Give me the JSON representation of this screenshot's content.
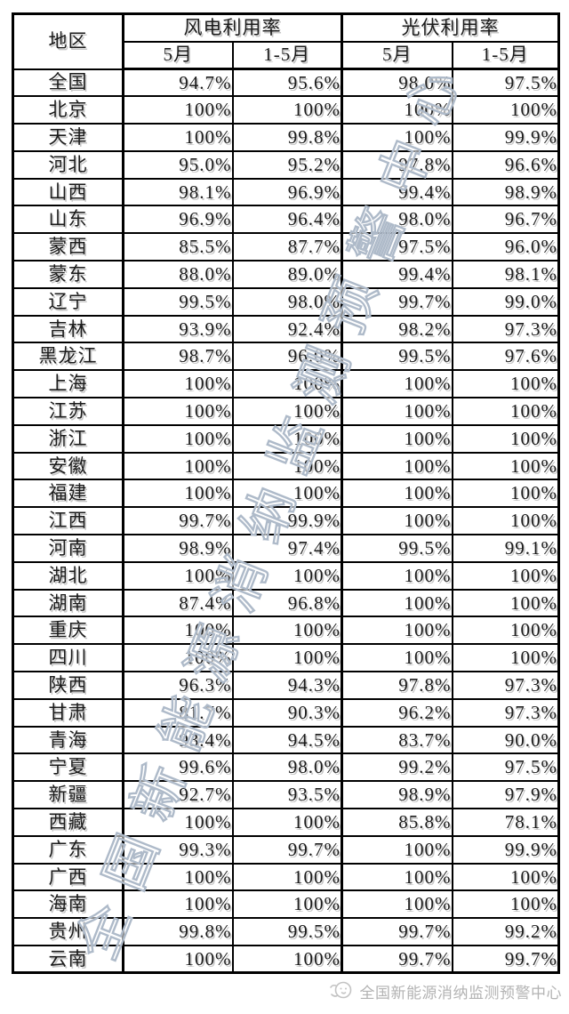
{
  "table": {
    "col_region": "地区",
    "group_wind": "风电利用率",
    "group_solar": "光伏利用率",
    "sub_may": "5月",
    "sub_jan_may": "1-5月",
    "rows": [
      {
        "region": "全国",
        "wind_may": "94.7%",
        "wind_cum": "95.6%",
        "pv_may": "98.0%",
        "pv_cum": "97.5%"
      },
      {
        "region": "北京",
        "wind_may": "100%",
        "wind_cum": "100%",
        "pv_may": "100%",
        "pv_cum": "100%"
      },
      {
        "region": "天津",
        "wind_may": "100%",
        "wind_cum": "99.8%",
        "pv_may": "100%",
        "pv_cum": "99.9%"
      },
      {
        "region": "河北",
        "wind_may": "95.0%",
        "wind_cum": "95.2%",
        "pv_may": "97.8%",
        "pv_cum": "96.6%"
      },
      {
        "region": "山西",
        "wind_may": "98.1%",
        "wind_cum": "96.9%",
        "pv_may": "99.4%",
        "pv_cum": "98.9%"
      },
      {
        "region": "山东",
        "wind_may": "96.9%",
        "wind_cum": "96.4%",
        "pv_may": "98.0%",
        "pv_cum": "96.7%"
      },
      {
        "region": "蒙西",
        "wind_may": "85.5%",
        "wind_cum": "87.7%",
        "pv_may": "97.5%",
        "pv_cum": "96.0%"
      },
      {
        "region": "蒙东",
        "wind_may": "88.0%",
        "wind_cum": "89.0%",
        "pv_may": "99.4%",
        "pv_cum": "98.1%"
      },
      {
        "region": "辽宁",
        "wind_may": "99.5%",
        "wind_cum": "98.0%",
        "pv_may": "99.7%",
        "pv_cum": "99.0%"
      },
      {
        "region": "吉林",
        "wind_may": "93.9%",
        "wind_cum": "92.4%",
        "pv_may": "98.2%",
        "pv_cum": "97.3%"
      },
      {
        "region": "黑龙江",
        "wind_may": "98.7%",
        "wind_cum": "96.0%",
        "pv_may": "99.5%",
        "pv_cum": "97.6%"
      },
      {
        "region": "上海",
        "wind_may": "100%",
        "wind_cum": "100%",
        "pv_may": "100%",
        "pv_cum": "100%"
      },
      {
        "region": "江苏",
        "wind_may": "100%",
        "wind_cum": "100%",
        "pv_may": "100%",
        "pv_cum": "100%"
      },
      {
        "region": "浙江",
        "wind_may": "100%",
        "wind_cum": "100%",
        "pv_may": "100%",
        "pv_cum": "100%"
      },
      {
        "region": "安徽",
        "wind_may": "100%",
        "wind_cum": "100%",
        "pv_may": "100%",
        "pv_cum": "100%"
      },
      {
        "region": "福建",
        "wind_may": "100%",
        "wind_cum": "100%",
        "pv_may": "100%",
        "pv_cum": "100%"
      },
      {
        "region": "江西",
        "wind_may": "99.7%",
        "wind_cum": "99.9%",
        "pv_may": "100%",
        "pv_cum": "100%"
      },
      {
        "region": "河南",
        "wind_may": "98.9%",
        "wind_cum": "97.4%",
        "pv_may": "99.5%",
        "pv_cum": "99.1%"
      },
      {
        "region": "湖北",
        "wind_may": "100%",
        "wind_cum": "100%",
        "pv_may": "100%",
        "pv_cum": "100%"
      },
      {
        "region": "湖南",
        "wind_may": "87.4%",
        "wind_cum": "96.8%",
        "pv_may": "100%",
        "pv_cum": "100%"
      },
      {
        "region": "重庆",
        "wind_may": "100%",
        "wind_cum": "100%",
        "pv_may": "100%",
        "pv_cum": "100%"
      },
      {
        "region": "四川",
        "wind_may": "100%",
        "wind_cum": "100%",
        "pv_may": "100%",
        "pv_cum": "100%"
      },
      {
        "region": "陕西",
        "wind_may": "96.3%",
        "wind_cum": "94.3%",
        "pv_may": "97.8%",
        "pv_cum": "97.3%"
      },
      {
        "region": "甘肃",
        "wind_may": "81.7%",
        "wind_cum": "90.3%",
        "pv_may": "96.2%",
        "pv_cum": "97.3%"
      },
      {
        "region": "青海",
        "wind_may": "93.4%",
        "wind_cum": "94.5%",
        "pv_may": "83.7%",
        "pv_cum": "90.0%"
      },
      {
        "region": "宁夏",
        "wind_may": "99.6%",
        "wind_cum": "98.0%",
        "pv_may": "99.2%",
        "pv_cum": "97.5%"
      },
      {
        "region": "新疆",
        "wind_may": "92.7%",
        "wind_cum": "93.5%",
        "pv_may": "98.9%",
        "pv_cum": "97.9%"
      },
      {
        "region": "西藏",
        "wind_may": "100%",
        "wind_cum": "100%",
        "pv_may": "85.8%",
        "pv_cum": "78.1%"
      },
      {
        "region": "广东",
        "wind_may": "99.3%",
        "wind_cum": "99.7%",
        "pv_may": "100%",
        "pv_cum": "99.9%"
      },
      {
        "region": "广西",
        "wind_may": "100%",
        "wind_cum": "100%",
        "pv_may": "100%",
        "pv_cum": "100%"
      },
      {
        "region": "海南",
        "wind_may": "100%",
        "wind_cum": "100%",
        "pv_may": "100%",
        "pv_cum": "100%"
      },
      {
        "region": "贵州",
        "wind_may": "99.8%",
        "wind_cum": "99.5%",
        "pv_may": "99.7%",
        "pv_cum": "99.2%"
      },
      {
        "region": "云南",
        "wind_may": "100%",
        "wind_cum": "100%",
        "pv_may": "99.7%",
        "pv_cum": "99.7%"
      }
    ]
  },
  "watermark": {
    "text": "全国新能源消纳监测预警中心",
    "stroke_color": "#aebac9",
    "fill_color": "rgba(255,255,255,0.55)"
  },
  "footer": {
    "source": "全国新能源消纳监测预警中心",
    "text_color": "#b3b3b3"
  },
  "colors": {
    "table_border": "#000000",
    "table_text": "#1b1b1b",
    "background": "#ffffff"
  }
}
